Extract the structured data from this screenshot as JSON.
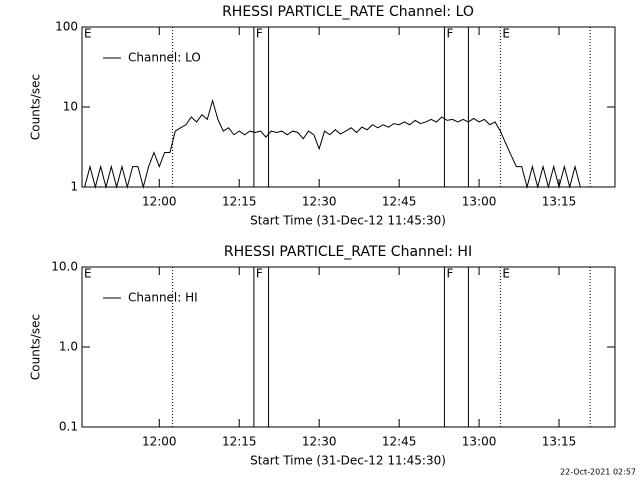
{
  "chart_data": [
    {
      "type": "line",
      "title": "RHESSI PARTICLE_RATE Channel: LO",
      "xlabel": "Start Time (31-Dec-12 11:45:30)",
      "ylabel": "Counts/sec",
      "log": true,
      "xlim": [
        "11:45:30",
        "13:25:30"
      ],
      "xticks": [
        "12:00",
        "12:15",
        "12:30",
        "12:45",
        "13:00",
        "13:15"
      ],
      "ylim": [
        1,
        100
      ],
      "yticks": [
        1,
        10,
        100
      ],
      "annotations": [
        {
          "x": "11:45:30",
          "style": "none",
          "label": "E"
        },
        {
          "x": "12:02:30",
          "style": "dotted"
        },
        {
          "x": "12:17:45",
          "style": "solid",
          "label": "F"
        },
        {
          "x": "12:20:30",
          "style": "solid"
        },
        {
          "x": "12:53:30",
          "style": "solid",
          "label": "F"
        },
        {
          "x": "12:58:00",
          "style": "solid"
        },
        {
          "x": "13:04:00",
          "style": "dotted",
          "label": "E"
        },
        {
          "x": "13:20:50",
          "style": "dotted"
        }
      ],
      "x": [
        "11:46",
        "11:47",
        "11:48",
        "11:49",
        "11:50",
        "11:51",
        "11:52",
        "11:53",
        "11:54",
        "11:55",
        "11:56",
        "11:57",
        "11:58",
        "11:59",
        "12:00",
        "12:01",
        "12:02",
        "12:03",
        "12:04",
        "12:05",
        "12:06",
        "12:07",
        "12:08",
        "12:09",
        "12:10",
        "12:11",
        "12:12",
        "12:13",
        "12:14",
        "12:15",
        "12:16",
        "12:17",
        "12:18",
        "12:19",
        "12:20",
        "12:21",
        "12:22",
        "12:23",
        "12:24",
        "12:25",
        "12:26",
        "12:27",
        "12:28",
        "12:29",
        "12:30",
        "12:31",
        "12:32",
        "12:33",
        "12:34",
        "12:35",
        "12:36",
        "12:37",
        "12:38",
        "12:39",
        "12:40",
        "12:41",
        "12:42",
        "12:43",
        "12:44",
        "12:45",
        "12:46",
        "12:47",
        "12:48",
        "12:49",
        "12:50",
        "12:51",
        "12:52",
        "12:53",
        "12:54",
        "12:55",
        "12:56",
        "12:57",
        "12:58",
        "12:59",
        "13:00",
        "13:01",
        "13:02",
        "13:03",
        "13:04",
        "13:05",
        "13:06",
        "13:07",
        "13:08",
        "13:09",
        "13:10",
        "13:11",
        "13:12",
        "13:13",
        "13:14",
        "13:15",
        "13:16",
        "13:17",
        "13:18",
        "13:19"
      ],
      "series": [
        {
          "name": "Channel: LO",
          "color": "#000000",
          "values": [
            1,
            1.8,
            1,
            1.8,
            1,
            1.8,
            1,
            1.8,
            1,
            1.8,
            1.8,
            1,
            1.8,
            2.7,
            1.8,
            2.7,
            2.7,
            5,
            5.5,
            6,
            7.5,
            6.5,
            8,
            7,
            12,
            7,
            5,
            5.5,
            4.5,
            5,
            4.5,
            5,
            4.8,
            5,
            4.2,
            5,
            4.8,
            5,
            4.5,
            5,
            4.8,
            4,
            5,
            4.5,
            3,
            5,
            4.5,
            5.2,
            4.6,
            5,
            5.5,
            4.8,
            5.6,
            5.2,
            6,
            5.5,
            6,
            5.6,
            6.2,
            6,
            6.5,
            6,
            6.8,
            6.2,
            6.5,
            7,
            6.5,
            7.5,
            6.8,
            7,
            6.5,
            7,
            6.5,
            7.2,
            6.5,
            7,
            6,
            6.5,
            5,
            3.5,
            2.5,
            1.8,
            1.8,
            1,
            1.8,
            1,
            1.8,
            1,
            1.8,
            1,
            1.8,
            1,
            1.8,
            1
          ]
        }
      ]
    },
    {
      "type": "line",
      "title": "RHESSI PARTICLE_RATE Channel: HI",
      "xlabel": "Start Time (31-Dec-12 11:45:30)",
      "ylabel": "Counts/sec",
      "log": true,
      "xlim": [
        "11:45:30",
        "13:25:30"
      ],
      "xticks": [
        "12:00",
        "12:15",
        "12:30",
        "12:45",
        "13:00",
        "13:15"
      ],
      "ylim": [
        0.1,
        10
      ],
      "yticks": [
        0.1,
        {
          "value": 1,
          "label": "1.0"
        },
        {
          "value": 10,
          "label": "10.0"
        }
      ],
      "annotations": [
        {
          "x": "11:45:30",
          "style": "none",
          "label": "E"
        },
        {
          "x": "12:02:30",
          "style": "dotted"
        },
        {
          "x": "12:17:45",
          "style": "solid",
          "label": "F"
        },
        {
          "x": "12:20:30",
          "style": "solid"
        },
        {
          "x": "12:53:30",
          "style": "solid",
          "label": "F"
        },
        {
          "x": "12:58:00",
          "style": "solid"
        },
        {
          "x": "13:04:00",
          "style": "dotted",
          "label": "E"
        },
        {
          "x": "13:20:50",
          "style": "dotted"
        }
      ],
      "series": [
        {
          "name": "Channel: HI",
          "color": "#000000"
        }
      ]
    }
  ],
  "footer": "22-Oct-2021 02:57"
}
